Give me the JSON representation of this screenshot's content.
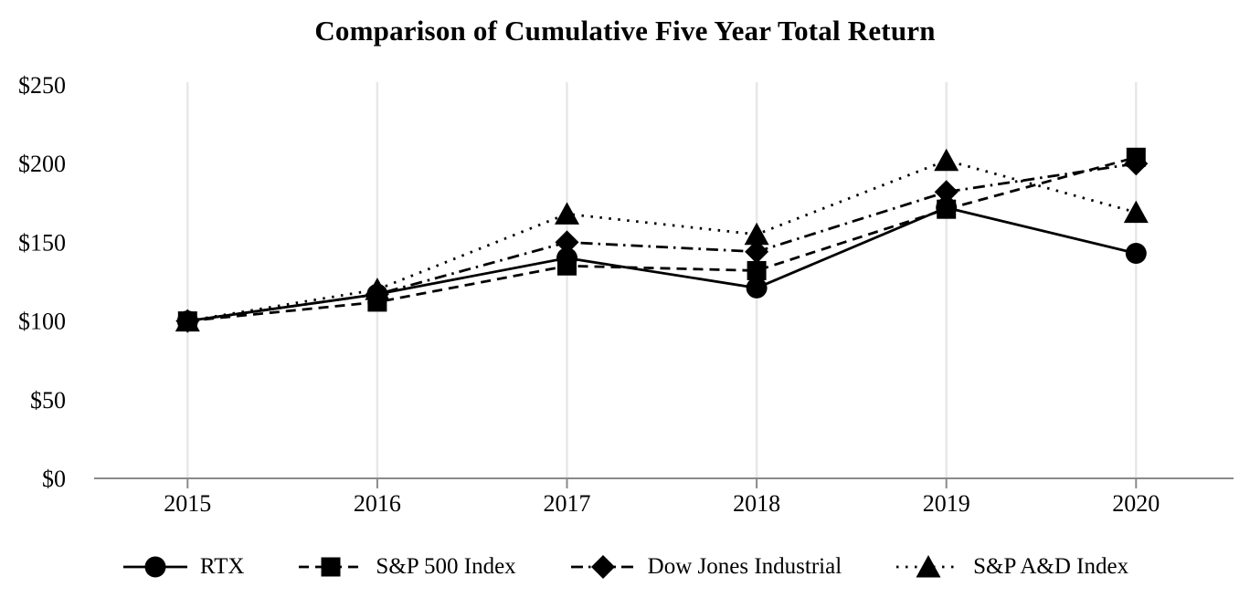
{
  "title": "Comparison of Cumulative Five Year Total Return",
  "chart_data": {
    "type": "line",
    "x_labels": [
      "2015",
      "2016",
      "2017",
      "2018",
      "2019",
      "2020"
    ],
    "yticks": [
      0,
      50,
      100,
      150,
      200,
      250
    ],
    "ytick_labels": [
      "$0",
      "$50",
      "$100",
      "$150",
      "$200",
      "$250"
    ],
    "ylim": [
      0,
      250
    ],
    "grid": "vertical-only",
    "legend_position": "bottom",
    "series": [
      {
        "name": "RTX",
        "marker": "circle",
        "linestyle": "solid",
        "color": "#000000",
        "values": [
          100,
          117,
          140,
          121,
          172,
          143
        ]
      },
      {
        "name": "S&P 500 Index",
        "marker": "square",
        "linestyle": "dashed",
        "color": "#000000",
        "values": [
          100,
          112,
          135,
          132,
          171,
          204
        ]
      },
      {
        "name": "Dow Jones Industrial",
        "marker": "diamond",
        "linestyle": "dashdot",
        "color": "#000000",
        "values": [
          100,
          117,
          150,
          144,
          182,
          200
        ]
      },
      {
        "name": "S&P A&D Index",
        "marker": "triangle",
        "linestyle": "dotted",
        "color": "#000000",
        "values": [
          100,
          120,
          168,
          155,
          202,
          169
        ]
      }
    ],
    "colors": {
      "gridline": "#e7e7e7",
      "axis": "#8a8a8a",
      "text": "#000000"
    }
  }
}
